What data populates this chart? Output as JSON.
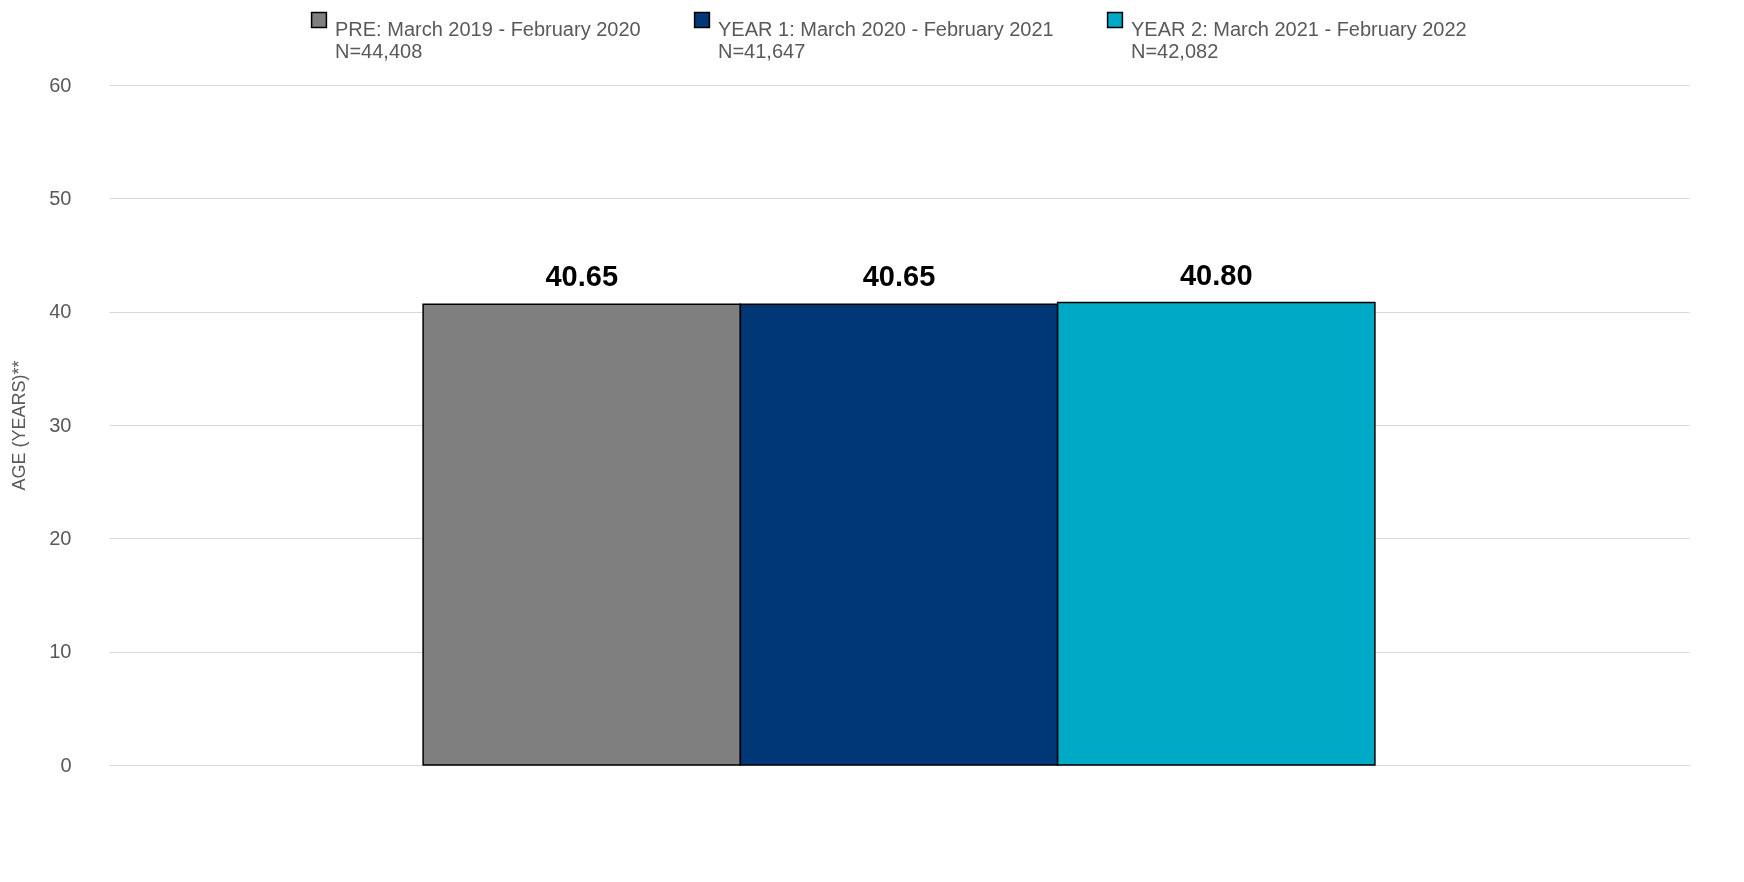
{
  "chart_data": {
    "type": "bar",
    "ylabel": "AGE (YEARS)**",
    "categories": [
      null
    ],
    "ylim": [
      0,
      60
    ],
    "yticks": [
      0,
      10,
      20,
      30,
      40,
      50,
      60
    ],
    "grid": "y",
    "legend": "top",
    "series": [
      {
        "name": "PRE: March 2019 - February 2020\nN=44,408",
        "color": "#7f7f7f",
        "values": [
          40.65
        ],
        "value_labels": [
          "40.65"
        ]
      },
      {
        "name": "YEAR 1: March 2020 - February 2021\nN=41,647",
        "color": "#003776",
        "values": [
          40.65
        ],
        "value_labels": [
          "40.65"
        ]
      },
      {
        "name": "YEAR 2: March 2021 - February 2022\nN=42,082",
        "color": "#00a9c6",
        "values": [
          40.8
        ],
        "value_labels": [
          "40.80"
        ]
      }
    ]
  }
}
